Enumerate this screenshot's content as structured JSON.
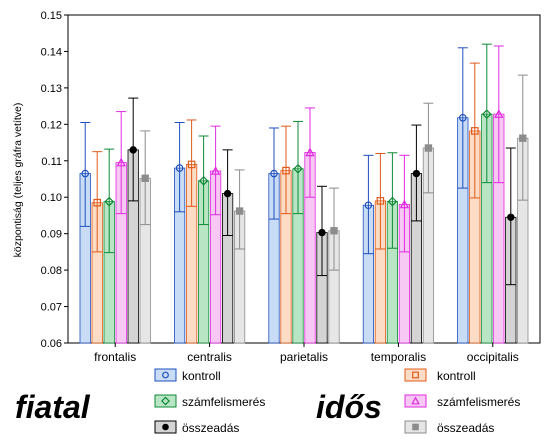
{
  "chart_data": {
    "type": "bar",
    "ylabel": "központiság (teljes gráfra vetítve)",
    "ylim": [
      0.06,
      0.15
    ],
    "yticks": [
      "0.06",
      "0.07",
      "0.08",
      "0.09",
      "0.10",
      "0.11",
      "0.12",
      "0.13",
      "0.14",
      "0.15"
    ],
    "grid": false,
    "legend": "bottom",
    "categories": [
      "frontalis",
      "centralis",
      "parietalis",
      "temporalis",
      "occipitalis"
    ],
    "groups": [
      {
        "label": "fiatal"
      },
      {
        "label": "idős"
      }
    ],
    "series": [
      {
        "name": "kontroll",
        "group": "fiatal",
        "fill": "#c9dcf5",
        "stroke": "#1f4fbf",
        "marker": "circle",
        "values": [
          0.1065,
          0.108,
          0.1065,
          0.0978,
          0.1218
        ],
        "lower": [
          0.092,
          0.096,
          0.094,
          0.0845,
          0.1025
        ],
        "upper": [
          0.1205,
          0.1205,
          0.119,
          0.1115,
          0.141
        ]
      },
      {
        "name": "kontroll",
        "group": "idős",
        "fill": "#fcdcc4",
        "stroke": "#e05a1a",
        "marker": "square",
        "values": [
          0.0985,
          0.109,
          0.1073,
          0.099,
          0.1182
        ],
        "lower": [
          0.085,
          0.0975,
          0.0955,
          0.0858,
          0.0998
        ],
        "upper": [
          0.1125,
          0.1212,
          0.1195,
          0.112,
          0.1368
        ]
      },
      {
        "name": "számfelismerés",
        "group": "fiatal",
        "fill": "#b8e6c4",
        "stroke": "#0f8a36",
        "marker": "diamond",
        "values": [
          0.0988,
          0.1045,
          0.1078,
          0.0988,
          0.1228
        ],
        "lower": [
          0.0848,
          0.0925,
          0.0955,
          0.086,
          0.104
        ],
        "upper": [
          0.1132,
          0.1168,
          0.1208,
          0.1122,
          0.142
        ]
      },
      {
        "name": "számfelismerés",
        "group": "idős",
        "fill": "#f8c8f4",
        "stroke": "#e02ae0",
        "marker": "triangle",
        "values": [
          0.1095,
          0.1072,
          0.1123,
          0.098,
          0.1228
        ],
        "lower": [
          0.0955,
          0.0952,
          0.1,
          0.085,
          0.104
        ],
        "upper": [
          0.1235,
          0.1195,
          0.1245,
          0.1115,
          0.1415
        ]
      },
      {
        "name": "összeadás",
        "group": "fiatal",
        "fill": "#d4d4d4",
        "stroke": "#000000",
        "marker": "circle-filled",
        "values": [
          0.113,
          0.101,
          0.0903,
          0.1065,
          0.0945
        ],
        "lower": [
          0.099,
          0.0895,
          0.0785,
          0.0935,
          0.076
        ],
        "upper": [
          0.1272,
          0.113,
          0.103,
          0.1198,
          0.1135
        ]
      },
      {
        "name": "összeadás",
        "group": "idős",
        "fill": "#e6e6e6",
        "stroke": "#8c8c8c",
        "marker": "square-filled",
        "values": [
          0.1052,
          0.0962,
          0.0908,
          0.1135,
          0.1162
        ],
        "lower": [
          0.0925,
          0.0858,
          0.08,
          0.1012,
          0.0992
        ],
        "upper": [
          0.1182,
          0.1075,
          0.1025,
          0.1258,
          0.1335
        ]
      }
    ],
    "legend_order": {
      "fiatal": [
        0,
        2,
        4
      ],
      "idős": [
        1,
        3,
        5
      ]
    }
  }
}
